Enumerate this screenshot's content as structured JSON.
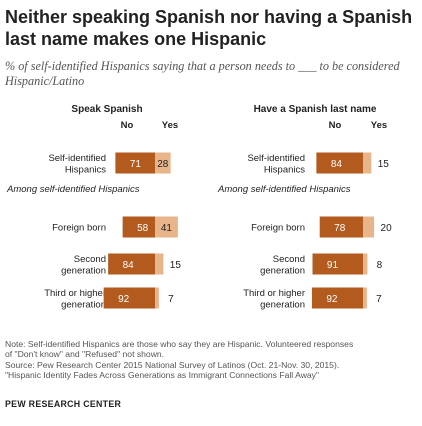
{
  "title": "Neither speaking Spanish nor having a Spanish last name makes one Hispanic",
  "subtitle": "% of self-identified Hispanics saying that a person needs to ___ to be considered Hispanic/Latino",
  "notes": [
    "Note: Self-identified Hispanics are those who say they are Hispanic. Volunteered responses",
    "of \"Don't know\" and \"Refused\" not shown.",
    "Source: Pew Research Center 2015 National Survey of Latinos (Oct. 21-Nov. 30, 2015).",
    "\"Hispanic Identity Fades Across Generations as Immigrant Connections Fall Away\""
  ],
  "brand": "PEW RESEARCH CENTER",
  "colors": {
    "no": "#b35a1f",
    "yes": "#e8b48a",
    "label_on_bar": "#ffffff",
    "text": "#222222"
  },
  "chart_data": [
    {
      "type": "bar",
      "stacked": true,
      "orientation": "horizontal",
      "title": "Speak Spanish",
      "series_names": [
        "No",
        "Yes"
      ],
      "group_label": "Among self-identified Hispanics",
      "rows": [
        {
          "label": [
            "Self-identified",
            "Hispanics"
          ],
          "no": 71,
          "yes": 28
        },
        {
          "label": [
            "Foreign born"
          ],
          "no": 58,
          "yes": 41
        },
        {
          "label": [
            "Second",
            "generation"
          ],
          "no": 84,
          "yes": 15
        },
        {
          "label": [
            "Third or higher",
            "generation"
          ],
          "no": 92,
          "yes": 7
        }
      ]
    },
    {
      "type": "bar",
      "stacked": true,
      "orientation": "horizontal",
      "title": "Have a Spanish last name",
      "series_names": [
        "No",
        "Yes"
      ],
      "group_label": "Among self-identified Hispanics",
      "rows": [
        {
          "label": [
            "Self-identified",
            "Hispanics"
          ],
          "no": 84,
          "yes": 15
        },
        {
          "label": [
            "Foreign born"
          ],
          "no": 78,
          "yes": 20
        },
        {
          "label": [
            "Second",
            "generation"
          ],
          "no": 91,
          "yes": 8
        },
        {
          "label": [
            "Third or higher",
            "generation"
          ],
          "no": 92,
          "yes": 7
        }
      ]
    }
  ]
}
